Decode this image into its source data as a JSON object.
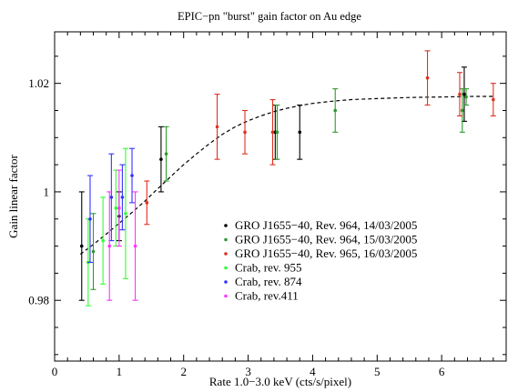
{
  "chart_data": {
    "type": "scatter",
    "title": "EPIC−pn \"burst\" gain factor on Au edge",
    "xlabel": "Rate 1.0−3.0 keV (cts/s/pixel)",
    "ylabel": "Gain linear factor",
    "xlim": [
      0,
      7
    ],
    "ylim": [
      0.9688,
      1.0295
    ],
    "x_ticks": [
      0,
      1,
      2,
      3,
      4,
      5,
      6
    ],
    "y_ticks": [
      0.98,
      1,
      1.02
    ],
    "x_tick_labels": [
      "0",
      "1",
      "2",
      "3",
      "4",
      "5",
      "6"
    ],
    "y_tick_labels": [
      "0.98",
      "1",
      "1.02"
    ],
    "grid": false,
    "legend_position": "lower-right",
    "series": [
      {
        "name": "GRO J1655−40, Rev. 964, 14/03/2005",
        "color": "#000000",
        "points": [
          {
            "x": 0.42,
            "y": 0.99,
            "err": 0.01
          },
          {
            "x": 1.0,
            "y": 0.9955,
            "err": 0.0045
          },
          {
            "x": 1.65,
            "y": 1.006,
            "err": 0.006
          },
          {
            "x": 3.42,
            "y": 1.011,
            "err": 0.005
          },
          {
            "x": 3.8,
            "y": 1.011,
            "err": 0.005
          },
          {
            "x": 6.35,
            "y": 1.018,
            "err": 0.005
          }
        ]
      },
      {
        "name": "GRO J1655−40, Rev. 964, 15/03/2005",
        "color": "#2e9a2e",
        "points": [
          {
            "x": 0.6,
            "y": 0.989,
            "err": 0.007
          },
          {
            "x": 1.73,
            "y": 1.007,
            "err": 0.005
          },
          {
            "x": 3.45,
            "y": 1.011,
            "err": 0.005
          },
          {
            "x": 4.35,
            "y": 1.015,
            "err": 0.004
          },
          {
            "x": 6.32,
            "y": 1.015,
            "err": 0.004
          },
          {
            "x": 6.38,
            "y": 1.0175,
            "err": 0.0015
          }
        ]
      },
      {
        "name": "GRO J1655−40, Rev. 965, 16/03/2005",
        "color": "#e03020",
        "points": [
          {
            "x": 1.43,
            "y": 0.998,
            "err": 0.004
          },
          {
            "x": 2.52,
            "y": 1.012,
            "err": 0.006
          },
          {
            "x": 2.95,
            "y": 1.011,
            "err": 0.004
          },
          {
            "x": 3.38,
            "y": 1.011,
            "err": 0.006
          },
          {
            "x": 5.78,
            "y": 1.021,
            "err": 0.005
          },
          {
            "x": 6.28,
            "y": 1.018,
            "err": 0.004
          },
          {
            "x": 6.8,
            "y": 1.017,
            "err": 0.003
          }
        ]
      },
      {
        "name": "Crab, rev. 955",
        "color": "#33ff33",
        "points": [
          {
            "x": 0.52,
            "y": 0.987,
            "err": 0.008
          },
          {
            "x": 0.75,
            "y": 0.991,
            "err": 0.008
          },
          {
            "x": 0.95,
            "y": 0.997,
            "err": 0.007
          },
          {
            "x": 1.1,
            "y": 0.996,
            "err": 0.012
          }
        ]
      },
      {
        "name": "Crab, rev. 874",
        "color": "#3333ff",
        "points": [
          {
            "x": 0.55,
            "y": 0.995,
            "err": 0.008
          },
          {
            "x": 0.88,
            "y": 0.999,
            "err": 0.008
          },
          {
            "x": 1.05,
            "y": 0.999,
            "err": 0.006
          },
          {
            "x": 1.2,
            "y": 1.003,
            "err": 0.005
          }
        ]
      },
      {
        "name": "Crab, rev.411",
        "color": "#ff33ff",
        "points": [
          {
            "x": 0.85,
            "y": 0.99,
            "err": 0.01
          },
          {
            "x": 1.0,
            "y": 0.997,
            "err": 0.007
          },
          {
            "x": 1.25,
            "y": 0.99,
            "err": 0.01
          }
        ]
      }
    ],
    "fit_curve": {
      "style": "dashed",
      "color": "#000000",
      "points": [
        [
          0.4,
          0.9885
        ],
        [
          0.6,
          0.9903
        ],
        [
          0.8,
          0.9922
        ],
        [
          1.0,
          0.9942
        ],
        [
          1.2,
          0.9962
        ],
        [
          1.4,
          0.9983
        ],
        [
          1.6,
          1.0006
        ],
        [
          1.8,
          1.0028
        ],
        [
          2.0,
          1.005
        ],
        [
          2.2,
          1.007
        ],
        [
          2.4,
          1.0089
        ],
        [
          2.6,
          1.0106
        ],
        [
          2.8,
          1.012
        ],
        [
          3.0,
          1.0131
        ],
        [
          3.2,
          1.014
        ],
        [
          3.4,
          1.0148
        ],
        [
          3.6,
          1.0154
        ],
        [
          3.8,
          1.0159
        ],
        [
          4.0,
          1.0163
        ],
        [
          4.3,
          1.0167
        ],
        [
          4.6,
          1.017
        ],
        [
          5.0,
          1.0172
        ],
        [
          5.5,
          1.0174
        ],
        [
          6.0,
          1.0175
        ],
        [
          6.5,
          1.0176
        ],
        [
          6.8,
          1.0176
        ]
      ]
    }
  }
}
